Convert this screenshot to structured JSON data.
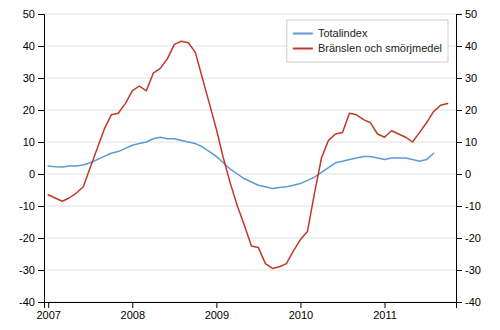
{
  "chart_data": {
    "type": "line",
    "xlim": [
      2006.95,
      2011.85
    ],
    "xticks": [
      2007,
      2008,
      2009,
      2010,
      2011
    ],
    "ylim": [
      -40,
      50
    ],
    "yticks": [
      -40,
      -30,
      -20,
      -10,
      0,
      10,
      20,
      30,
      40,
      50
    ],
    "y2lim": [
      -40,
      50
    ],
    "y2ticks": [
      -40,
      -30,
      -20,
      -10,
      0,
      10,
      20,
      30,
      40,
      50
    ],
    "grid": true,
    "legend": "upper right",
    "series": [
      {
        "name": "Totalindex",
        "color": "#5b9bd5",
        "x": [
          2007.0,
          2007.083,
          2007.167,
          2007.25,
          2007.333,
          2007.417,
          2007.5,
          2007.583,
          2007.667,
          2007.75,
          2007.833,
          2007.917,
          2008.0,
          2008.083,
          2008.167,
          2008.25,
          2008.333,
          2008.417,
          2008.5,
          2008.583,
          2008.667,
          2008.75,
          2008.833,
          2008.917,
          2009.0,
          2009.083,
          2009.167,
          2009.25,
          2009.333,
          2009.417,
          2009.5,
          2009.583,
          2009.667,
          2009.75,
          2009.833,
          2009.917,
          2010.0,
          2010.083,
          2010.167,
          2010.25,
          2010.333,
          2010.417,
          2010.5,
          2010.583,
          2010.667,
          2010.75,
          2010.833,
          2010.917,
          2011.0,
          2011.083,
          2011.167,
          2011.25,
          2011.333,
          2011.417,
          2011.5,
          2011.583
        ],
        "values": [
          2.5,
          2.3,
          2.2,
          2.5,
          2.5,
          2.8,
          3.5,
          4.5,
          5.5,
          6.5,
          7.0,
          8.0,
          9.0,
          9.5,
          10.0,
          11.0,
          11.5,
          11.0,
          11.0,
          10.5,
          10.0,
          9.5,
          8.5,
          7.0,
          5.5,
          3.5,
          1.5,
          0.0,
          -1.5,
          -2.5,
          -3.5,
          -4.0,
          -4.5,
          -4.2,
          -4.0,
          -3.5,
          -3.0,
          -2.0,
          -1.0,
          0.5,
          2.0,
          3.5,
          4.0,
          4.5,
          5.0,
          5.5,
          5.5,
          5.0,
          4.5,
          5.0,
          5.0,
          5.0,
          4.5,
          4.0,
          4.5,
          6.5
        ]
      },
      {
        "name": "Bränslen och smörjmedel",
        "color": "#c0392b",
        "axis": "y2",
        "x": [
          2007.0,
          2007.083,
          2007.167,
          2007.25,
          2007.333,
          2007.417,
          2007.5,
          2007.583,
          2007.667,
          2007.75,
          2007.833,
          2007.917,
          2008.0,
          2008.083,
          2008.167,
          2008.25,
          2008.333,
          2008.417,
          2008.5,
          2008.583,
          2008.667,
          2008.75,
          2008.833,
          2008.917,
          2009.0,
          2009.083,
          2009.167,
          2009.25,
          2009.333,
          2009.417,
          2009.5,
          2009.583,
          2009.667,
          2009.75,
          2009.833,
          2009.917,
          2010.0,
          2010.083,
          2010.167,
          2010.25,
          2010.333,
          2010.417,
          2010.5,
          2010.583,
          2010.667,
          2010.75,
          2010.833,
          2010.917,
          2011.0,
          2011.083,
          2011.167,
          2011.25,
          2011.333,
          2011.417,
          2011.5,
          2011.583,
          2011.667,
          2011.75
        ],
        "values": [
          -6.5,
          -7.5,
          -8.5,
          -7.5,
          -6.0,
          -4.0,
          2.0,
          8.0,
          14.0,
          18.5,
          19.0,
          22.0,
          26.0,
          27.5,
          26.0,
          31.5,
          33.0,
          36.0,
          40.5,
          41.5,
          41.0,
          38.0,
          30.0,
          22.0,
          14.0,
          5.0,
          -3.0,
          -10.0,
          -16.0,
          -22.5,
          -23.0,
          -28.0,
          -29.5,
          -29.0,
          -28.0,
          -24.0,
          -20.5,
          -18.0,
          -6.0,
          5.0,
          10.5,
          12.5,
          13.0,
          19.0,
          18.5,
          17.0,
          16.0,
          12.5,
          11.5,
          13.5,
          12.5,
          11.5,
          10.0,
          13.0,
          16.0,
          19.5,
          21.5,
          22.0
        ]
      }
    ]
  }
}
